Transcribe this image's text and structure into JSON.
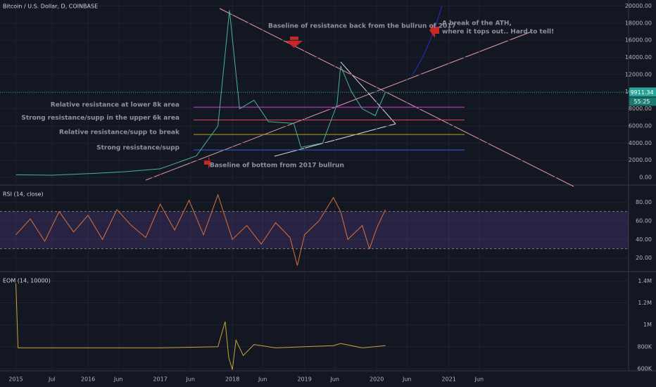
{
  "chart_data": [
    {
      "type": "line",
      "title": "Bitcoin / U.S. Dollar, D, COINBASE",
      "color": "#4caf9a",
      "x": [
        2015.0,
        2015.5,
        2016.0,
        2016.5,
        2017.0,
        2017.5,
        2017.8,
        2017.96,
        2018.1,
        2018.3,
        2018.5,
        2018.85,
        2018.95,
        2019.25,
        2019.45,
        2019.5,
        2019.65,
        2019.8,
        2019.98,
        2020.12
      ],
      "values": [
        300,
        250,
        430,
        650,
        1000,
        2500,
        6000,
        19500,
        8000,
        9000,
        6500,
        6300,
        3500,
        4000,
        8500,
        13000,
        10000,
        8000,
        7200,
        9911.34
      ],
      "ylim": [
        -900,
        20700
      ],
      "yticks": [
        {
          "value": 0,
          "label": "0.00"
        },
        {
          "value": 2000,
          "label": "2000.00"
        },
        {
          "value": 4000,
          "label": "4000.00"
        },
        {
          "value": 6000,
          "label": "6000.00"
        },
        {
          "value": 8000,
          "label": "8000.00"
        },
        {
          "value": 10000,
          "label": "10000.00"
        },
        {
          "value": 12000,
          "label": "12000.00"
        },
        {
          "value": 14000,
          "label": "14000.00"
        },
        {
          "value": 16000,
          "label": "16000.00"
        },
        {
          "value": 18000,
          "label": "18000.00"
        },
        {
          "value": 20000,
          "label": "20000.00"
        }
      ],
      "last_price": 9911.34,
      "countdown": "55:25",
      "levels": [
        {
          "label": "Relative resistance at lower 8k area",
          "value": 8200,
          "color": "#d13adf"
        },
        {
          "label": "Strong resistance/supp in the upper 6k area",
          "value": 6700,
          "color": "#e0474f"
        },
        {
          "label": "Relative resistance/supp to break",
          "value": 5000,
          "color": "#b7a020"
        },
        {
          "label": "Strong resistance/supp",
          "value": 3200,
          "color": "#2f5fe0"
        }
      ],
      "annotations": [
        "Baseline of resistance back from the bullrun of 2017",
        "A break of the ATH,",
        "where it tops out.. Hard to tell!",
        "Baseline of bottom from 2017 bullrun"
      ]
    },
    {
      "type": "line",
      "title": "RSI (14, close)",
      "color": "#d9713a",
      "x": [
        2015.0,
        2015.2,
        2015.4,
        2015.6,
        2015.8,
        2016.0,
        2016.2,
        2016.4,
        2016.6,
        2016.8,
        2017.0,
        2017.2,
        2017.4,
        2017.6,
        2017.8,
        2018.0,
        2018.2,
        2018.4,
        2018.6,
        2018.8,
        2018.9,
        2019.0,
        2019.2,
        2019.4,
        2019.5,
        2019.6,
        2019.8,
        2019.9,
        2020.0,
        2020.12
      ],
      "values": [
        45,
        62,
        38,
        70,
        48,
        66,
        40,
        72,
        55,
        42,
        78,
        50,
        82,
        45,
        88,
        40,
        55,
        35,
        58,
        42,
        12,
        45,
        60,
        85,
        70,
        40,
        55,
        30,
        52,
        72
      ],
      "band": [
        30,
        70
      ],
      "ylim": [
        5.4,
        97.7
      ],
      "yticks": [
        {
          "value": 20,
          "label": "20.00"
        },
        {
          "value": 40,
          "label": "40.00"
        },
        {
          "value": 60,
          "label": "60.00"
        },
        {
          "value": 80,
          "label": "80.00"
        }
      ]
    },
    {
      "type": "line",
      "title": "EOM (14, 10000)",
      "color": "#c8a23c",
      "x": [
        2015.0,
        2015.03,
        2016.0,
        2017.0,
        2017.8,
        2017.9,
        2017.95,
        2018.0,
        2018.05,
        2018.15,
        2018.3,
        2018.6,
        2019.0,
        2019.4,
        2019.5,
        2019.8,
        2020.12
      ],
      "values": [
        1380000,
        790000,
        790000,
        790000,
        800000,
        1030000,
        700000,
        590000,
        860000,
        720000,
        820000,
        790000,
        800000,
        810000,
        830000,
        790000,
        810000
      ],
      "ylim": [
        580000,
        1480000
      ],
      "yticks": [
        {
          "value": 600000,
          "label": "600K"
        },
        {
          "value": 800000,
          "label": "800K"
        },
        {
          "value": 1000000,
          "label": "1M"
        },
        {
          "value": 1200000,
          "label": "1.2M"
        },
        {
          "value": 1400000,
          "label": "1.4M"
        }
      ],
      "xlim": [
        2014.78,
        2023.49
      ],
      "xticks": [
        2015,
        {
          "value": 2015.5,
          "label": "Jul"
        },
        2016,
        {
          "value": 2016.42,
          "label": "Jun"
        },
        2017,
        {
          "value": 2017.42,
          "label": "Jun"
        },
        2018,
        {
          "value": 2018.42,
          "label": "Jun"
        },
        2019,
        {
          "value": 2019.42,
          "label": "Jun"
        },
        2020,
        {
          "value": 2020.42,
          "label": "Jun"
        },
        2021,
        {
          "value": 2021.42,
          "label": "Jun"
        }
      ]
    }
  ]
}
